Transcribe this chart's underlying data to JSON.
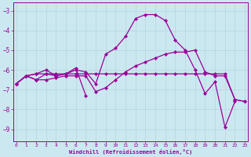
{
  "xlabel": "Windchill (Refroidissement éolien,°C)",
  "background_color": "#cbe8f0",
  "line_color": "#990099",
  "grid_color": "#b8d8e0",
  "x_ticks": [
    0,
    1,
    2,
    3,
    4,
    5,
    6,
    7,
    8,
    9,
    10,
    11,
    12,
    13,
    14,
    15,
    16,
    17,
    18,
    19,
    20,
    21,
    22,
    23
  ],
  "y_ticks": [
    -9,
    -8,
    -7,
    -6,
    -5,
    -4,
    -3
  ],
  "xlim": [
    -0.3,
    23.3
  ],
  "ylim": [
    -9.6,
    -2.6
  ],
  "c1": [
    -6.7,
    -6.3,
    -6.2,
    -6.0,
    -6.3,
    -6.2,
    -5.9,
    -7.3,
    null,
    null,
    null,
    null,
    null,
    null,
    null,
    null,
    null,
    null,
    null,
    null,
    null,
    null,
    null,
    null
  ],
  "c2": [
    -6.7,
    -6.3,
    -6.2,
    -6.2,
    -6.3,
    -6.2,
    -6.0,
    -6.1,
    -6.7,
    -5.2,
    -4.9,
    -4.3,
    -3.4,
    -3.2,
    -3.2,
    -3.5,
    -4.5,
    -5.0,
    -6.0,
    -7.2,
    -6.6,
    -8.9,
    -7.6,
    null
  ],
  "c3": [
    -6.7,
    -6.3,
    -6.5,
    -6.5,
    -6.4,
    -6.3,
    -6.3,
    -6.3,
    -7.1,
    -6.9,
    -6.5,
    -6.1,
    -5.8,
    -5.6,
    -5.4,
    -5.2,
    -5.1,
    -5.1,
    -5.0,
    -6.1,
    -6.3,
    -6.3,
    -7.5,
    -7.6
  ],
  "c4": [
    -6.7,
    -6.3,
    -6.5,
    -6.2,
    -6.2,
    -6.2,
    -6.2,
    -6.2,
    -6.2,
    -6.2,
    -6.2,
    -6.2,
    -6.2,
    -6.2,
    -6.2,
    -6.2,
    -6.2,
    -6.2,
    -6.2,
    -6.2,
    -6.2,
    -6.2,
    -7.5,
    -7.6
  ]
}
